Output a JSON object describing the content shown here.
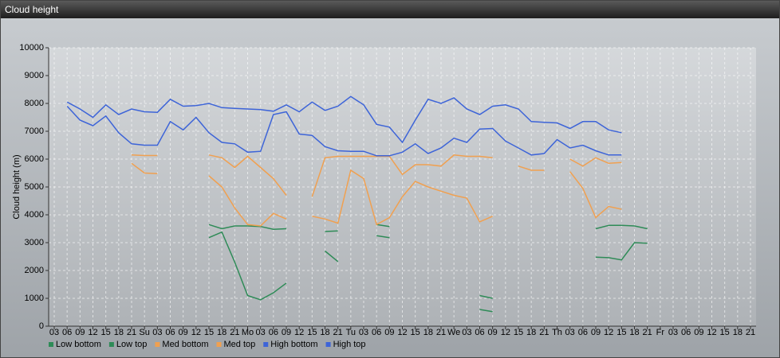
{
  "chart_data": {
    "type": "line",
    "title": "Cloud height",
    "y_label": "Cloud height (m)",
    "categories": [
      "03",
      "06",
      "09",
      "12",
      "15",
      "18",
      "21",
      "Su",
      "03",
      "06",
      "09",
      "12",
      "15",
      "18",
      "21",
      "Mo",
      "03",
      "06",
      "09",
      "12",
      "15",
      "18",
      "21",
      "Tu",
      "03",
      "06",
      "09",
      "12",
      "15",
      "18",
      "21",
      "We",
      "03",
      "06",
      "09",
      "12",
      "15",
      "18",
      "21",
      "Th",
      "03",
      "06",
      "09",
      "12",
      "15",
      "18",
      "21",
      "Fr",
      "03",
      "06",
      "09",
      "12",
      "15",
      "18",
      "21"
    ],
    "ylim": [
      0,
      10000
    ],
    "yticks": [
      0,
      1000,
      2000,
      3000,
      4000,
      5000,
      6000,
      7000,
      8000,
      9000,
      10000
    ],
    "grid": true,
    "series": [
      {
        "name": "Low bottom",
        "color": "#2e8b57",
        "values": [
          null,
          null,
          null,
          null,
          null,
          null,
          null,
          null,
          null,
          null,
          null,
          null,
          3180,
          3380,
          2300,
          1100,
          950,
          1200,
          1550,
          null,
          null,
          2700,
          2320,
          null,
          null,
          3250,
          3180,
          null,
          null,
          null,
          null,
          null,
          null,
          600,
          520,
          null,
          null,
          null,
          null,
          null,
          null,
          null,
          2480,
          2460,
          2380,
          3000,
          2980,
          null,
          null,
          null,
          null,
          null,
          null,
          null,
          null
        ]
      },
      {
        "name": "Low top",
        "color": "#2e8b57",
        "values": [
          null,
          null,
          null,
          null,
          null,
          null,
          null,
          null,
          null,
          null,
          null,
          null,
          3650,
          3500,
          3600,
          3600,
          3580,
          3480,
          3500,
          null,
          null,
          3400,
          3420,
          null,
          null,
          3650,
          3580,
          null,
          null,
          null,
          null,
          null,
          null,
          1100,
          1000,
          null,
          null,
          null,
          null,
          null,
          null,
          null,
          3500,
          3620,
          3620,
          3600,
          3500,
          null,
          null,
          null,
          null,
          null,
          null,
          null,
          null
        ]
      },
      {
        "name": "Med bottom",
        "color": "#f0a050",
        "values": [
          null,
          null,
          null,
          null,
          null,
          null,
          5850,
          5500,
          5480,
          null,
          null,
          null,
          5400,
          5000,
          4250,
          3650,
          3600,
          4050,
          3850,
          null,
          3950,
          3850,
          3700,
          5600,
          5300,
          3650,
          3900,
          4650,
          5200,
          5000,
          4850,
          4700,
          4600,
          3750,
          3950,
          null,
          null,
          null,
          null,
          null,
          5550,
          4950,
          3900,
          4300,
          4200,
          null,
          null,
          null,
          null,
          null,
          null,
          null,
          null,
          null,
          null
        ]
      },
      {
        "name": "Med top",
        "color": "#f0a050",
        "values": [
          null,
          null,
          null,
          null,
          null,
          null,
          6150,
          6130,
          6130,
          null,
          null,
          null,
          6150,
          6050,
          5700,
          6100,
          5700,
          5300,
          4700,
          null,
          4650,
          6050,
          6100,
          6100,
          6100,
          6100,
          6100,
          5450,
          5800,
          5800,
          5750,
          6150,
          6100,
          6100,
          6050,
          null,
          5750,
          5600,
          5600,
          null,
          6000,
          5750,
          6050,
          5850,
          5880,
          null,
          null,
          null,
          null,
          null,
          null,
          null,
          null,
          null,
          null
        ]
      },
      {
        "name": "High bottom",
        "color": "#3d64d8",
        "values": [
          null,
          7900,
          7400,
          7200,
          7550,
          6950,
          6550,
          6500,
          6500,
          7350,
          7050,
          7500,
          6950,
          6600,
          6550,
          6250,
          6280,
          7600,
          7700,
          6900,
          6850,
          6450,
          6300,
          6280,
          6280,
          6120,
          6120,
          6250,
          6550,
          6200,
          6400,
          6750,
          6600,
          7080,
          7100,
          6650,
          6400,
          6150,
          6200,
          6700,
          6400,
          6500,
          6300,
          6150,
          6150,
          null,
          null,
          null,
          null,
          null,
          null,
          null,
          null,
          null,
          null
        ]
      },
      {
        "name": "High top",
        "color": "#3d64d8",
        "values": [
          null,
          8050,
          7800,
          7500,
          7950,
          7600,
          7800,
          7700,
          7680,
          8150,
          7900,
          7920,
          8000,
          7850,
          7820,
          7800,
          7780,
          7720,
          7950,
          7700,
          8050,
          7750,
          7900,
          8250,
          7950,
          7250,
          7150,
          6600,
          7400,
          8150,
          8000,
          8200,
          7800,
          7600,
          7900,
          7950,
          7800,
          7350,
          7320,
          7300,
          7100,
          7350,
          7350,
          7050,
          6950,
          null,
          null,
          null,
          null,
          null,
          null,
          null,
          null,
          null,
          null
        ]
      }
    ]
  }
}
